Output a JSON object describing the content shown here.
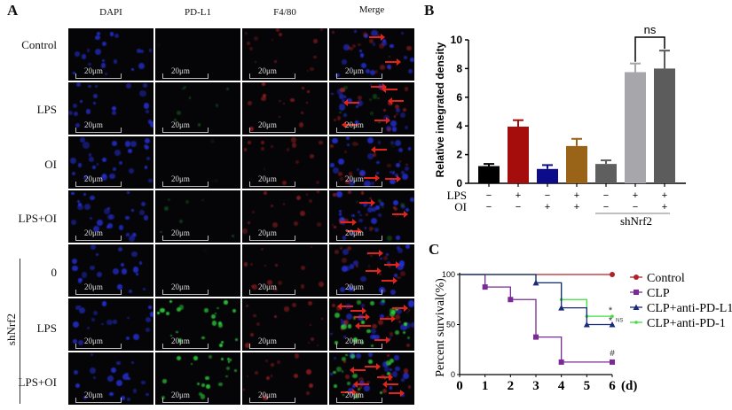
{
  "panel_a": {
    "letter": "A",
    "columns": [
      "DAPI",
      "PD-L1",
      "F4/80",
      "Merge"
    ],
    "rows": [
      "Control",
      "LPS",
      "OI",
      "LPS+OI",
      "0",
      "LPS",
      "LPS+OI"
    ],
    "group_label": "shNrf2",
    "scale_bar": "20μm",
    "channel_colors": {
      "DAPI": "#2630d8",
      "PD-L1": "#2fd03a",
      "F4/80": "#d3282a",
      "arrow": "#e0241c"
    }
  },
  "panel_b": {
    "letter": "B",
    "ylabel": "Relative integrated density",
    "yticks": [
      "0",
      "2",
      "4",
      "6",
      "8",
      "10"
    ],
    "row_labels": [
      "LPS",
      "OI"
    ],
    "lps": [
      "−",
      "+",
      "−",
      "+",
      "−",
      "+",
      "+"
    ],
    "oi": [
      "−",
      "−",
      "+",
      "+",
      "−",
      "−",
      "+"
    ],
    "group_label": "shNrf2",
    "sig_label": "ns"
  },
  "panel_c": {
    "letter": "C",
    "ylabel": "Percent survival(%)",
    "xunit": "(d)",
    "xticks": [
      "0",
      "1",
      "2",
      "3",
      "4",
      "5",
      "6"
    ],
    "yticks": [
      "0",
      "50",
      "100"
    ],
    "legend": [
      "Control",
      "CLP",
      "CLP+anti-PD-L1",
      "CLP+anti-PD-1"
    ],
    "annotations": {
      "clp": "#",
      "pdl1": "*",
      "pd1": "*",
      "ns": "NS"
    }
  },
  "chart_data": [
    {
      "type": "bar",
      "title": "",
      "xlabel": "",
      "ylabel": "Relative integrated density",
      "ylim": [
        0,
        10
      ],
      "categories": [
        "Control",
        "LPS",
        "OI",
        "LPS+OI",
        "shNrf2",
        "shNrf2+LPS",
        "shNrf2+LPS+OI"
      ],
      "values": [
        1.2,
        3.95,
        1.0,
        2.6,
        1.35,
        7.75,
        8.0
      ],
      "errors": [
        0.15,
        0.45,
        0.27,
        0.5,
        0.25,
        0.6,
        1.25
      ],
      "colors": [
        "#000000",
        "#a50d0d",
        "#0c0c8a",
        "#9a6418",
        "#5f5f5f",
        "#a6a6ab",
        "#5c5c5c"
      ],
      "annotations": [
        {
          "between": [
            "shNrf2+LPS",
            "shNrf2+LPS+OI"
          ],
          "text": "ns"
        }
      ]
    },
    {
      "type": "line",
      "subtype": "kaplan-meier step",
      "title": "",
      "xlabel": "(d)",
      "ylabel": "Percent survival(%)",
      "xlim": [
        0,
        6
      ],
      "ylim": [
        0,
        100
      ],
      "x": [
        0,
        1,
        2,
        3,
        4,
        5,
        6
      ],
      "series": [
        {
          "name": "Control",
          "color": "#b0212a",
          "values": [
            100,
            100,
            100,
            100,
            100,
            100,
            100
          ]
        },
        {
          "name": "CLP",
          "color": "#7a2a96",
          "values": [
            100,
            87.5,
            75,
            37.5,
            12.5,
            12.5,
            12.5
          ]
        },
        {
          "name": "CLP+anti-PD-L1",
          "color": "#1a2a7a",
          "values": [
            100,
            100,
            100,
            91.7,
            66.7,
            50,
            50
          ]
        },
        {
          "name": "CLP+anti-PD-1",
          "color": "#3ee03e",
          "values": [
            100,
            100,
            100,
            91.7,
            75,
            58.3,
            58.3
          ]
        }
      ],
      "legend_position": "right"
    }
  ]
}
